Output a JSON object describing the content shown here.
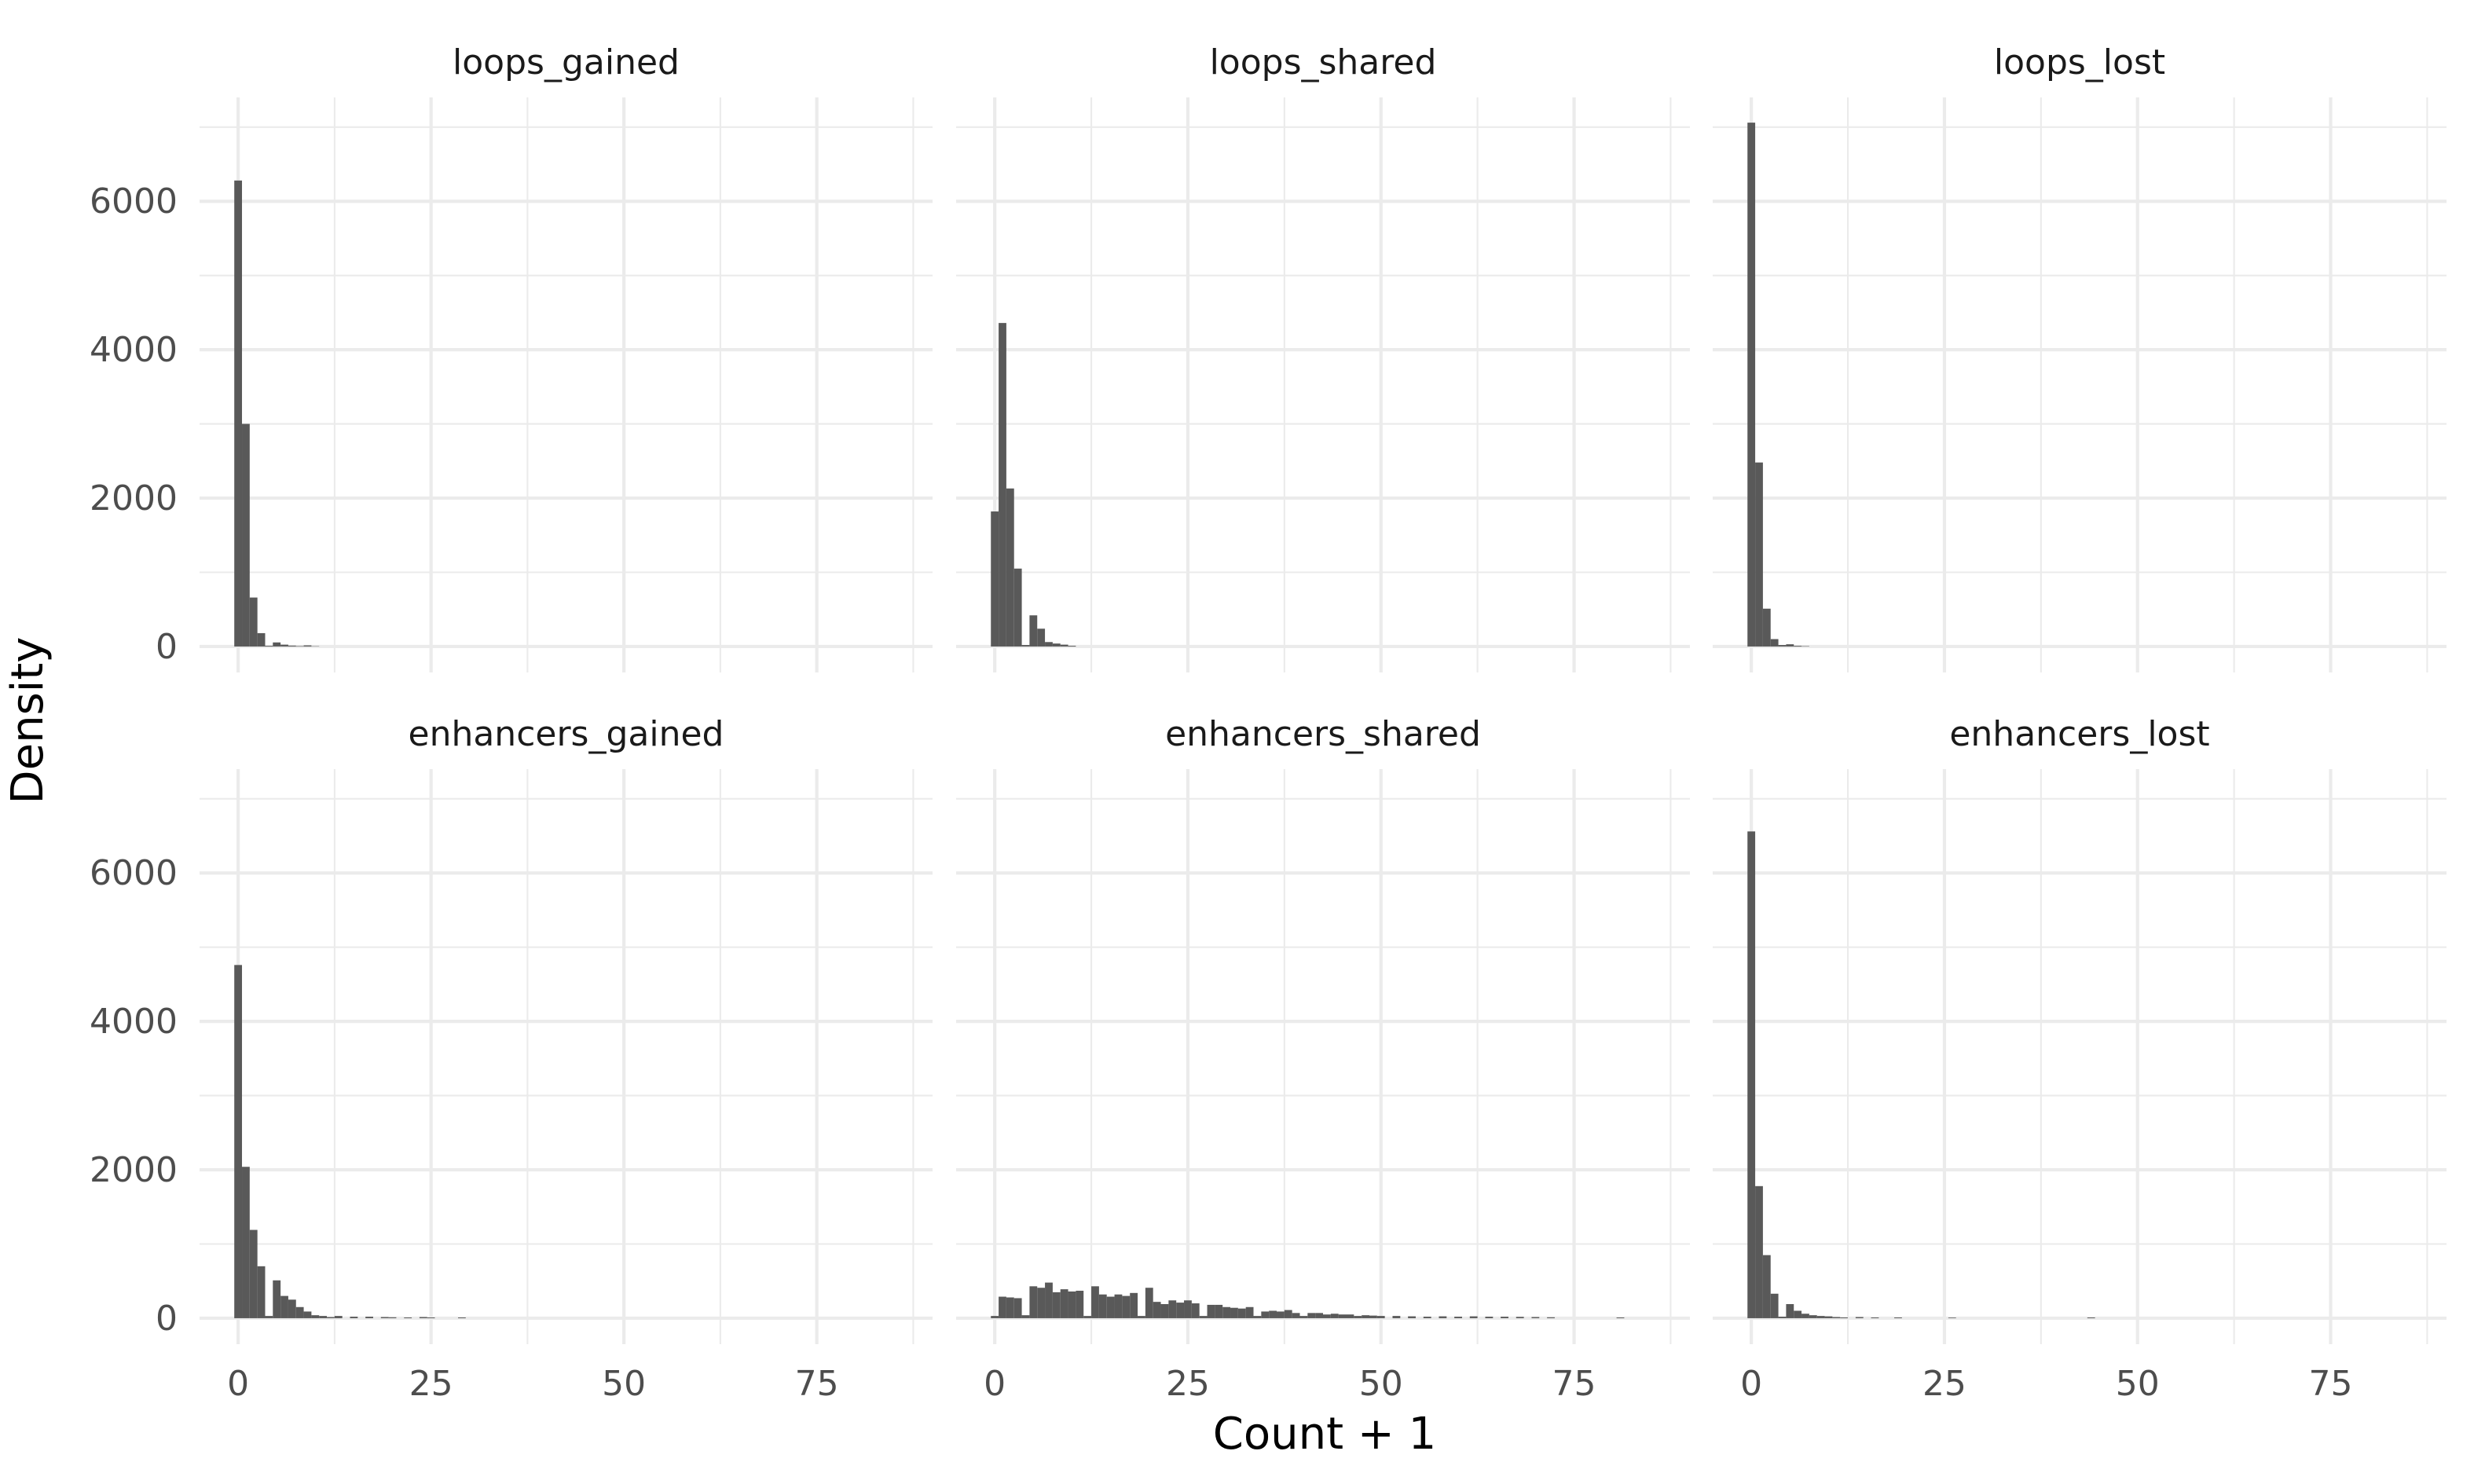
{
  "chart_data": {
    "type": "bar",
    "layout": "facet-grid",
    "xlabel": "Count + 1",
    "ylabel": "Density",
    "xlim": [
      -5,
      90
    ],
    "ylim": [
      -350,
      7400
    ],
    "x_ticks": [
      0,
      25,
      50,
      75
    ],
    "x_minor": [
      12.5,
      37.5,
      62.5,
      87.5
    ],
    "y_ticks": [
      0,
      2000,
      4000,
      6000
    ],
    "y_minor": [
      1000,
      3000,
      5000,
      7000
    ],
    "bar_color": "#595959",
    "bin_width": 1,
    "grid": true,
    "panels": [
      {
        "title": "loops_gained",
        "x": [
          0,
          1,
          2,
          3,
          4,
          5,
          6,
          7,
          8,
          9,
          10
        ],
        "y": [
          6280,
          3000,
          660,
          180,
          10,
          55,
          25,
          12,
          6,
          15,
          4
        ]
      },
      {
        "title": "loops_shared",
        "x": [
          0,
          1,
          2,
          3,
          4,
          5,
          6,
          7,
          8,
          9,
          10
        ],
        "y": [
          1820,
          4360,
          2130,
          1050,
          20,
          420,
          240,
          60,
          40,
          25,
          10
        ]
      },
      {
        "title": "loops_lost",
        "x": [
          0,
          1,
          2,
          3,
          4,
          5,
          6,
          7
        ],
        "y": [
          7060,
          2480,
          510,
          100,
          20,
          30,
          10,
          5
        ]
      },
      {
        "title": "enhancers_gained",
        "x": [
          0,
          1,
          2,
          3,
          4,
          5,
          6,
          7,
          8,
          9,
          10,
          11,
          12,
          13,
          15,
          17,
          19,
          20,
          22,
          24,
          25,
          29
        ],
        "y": [
          4760,
          2040,
          1190,
          700,
          30,
          510,
          300,
          250,
          150,
          90,
          40,
          30,
          15,
          30,
          20,
          20,
          15,
          12,
          10,
          15,
          10,
          10
        ]
      },
      {
        "title": "enhancers_shared",
        "x": [
          0,
          1,
          2,
          3,
          4,
          5,
          6,
          7,
          8,
          9,
          10,
          11,
          12,
          13,
          14,
          15,
          16,
          17,
          18,
          19,
          20,
          21,
          22,
          23,
          24,
          25,
          26,
          27,
          28,
          29,
          30,
          31,
          32,
          33,
          34,
          35,
          36,
          37,
          38,
          39,
          40,
          41,
          42,
          43,
          44,
          45,
          46,
          47,
          48,
          49,
          50,
          52,
          54,
          56,
          58,
          60,
          62,
          64,
          66,
          68,
          70,
          72,
          81
        ],
        "y": [
          30,
          290,
          280,
          270,
          40,
          430,
          410,
          480,
          350,
          390,
          360,
          370,
          30,
          430,
          320,
          290,
          320,
          300,
          340,
          30,
          410,
          220,
          190,
          240,
          210,
          240,
          200,
          30,
          180,
          180,
          150,
          140,
          130,
          150,
          30,
          90,
          100,
          90,
          110,
          70,
          30,
          70,
          70,
          50,
          60,
          50,
          50,
          30,
          40,
          35,
          30,
          30,
          25,
          20,
          25,
          20,
          25,
          20,
          20,
          18,
          15,
          12,
          10
        ]
      },
      {
        "title": "enhancers_lost",
        "x": [
          0,
          1,
          2,
          3,
          4,
          5,
          6,
          7,
          8,
          9,
          10,
          11,
          12,
          14,
          16,
          19,
          26,
          44
        ],
        "y": [
          6560,
          1780,
          850,
          330,
          20,
          190,
          100,
          60,
          40,
          30,
          25,
          15,
          10,
          15,
          10,
          10,
          8,
          10
        ]
      }
    ]
  }
}
